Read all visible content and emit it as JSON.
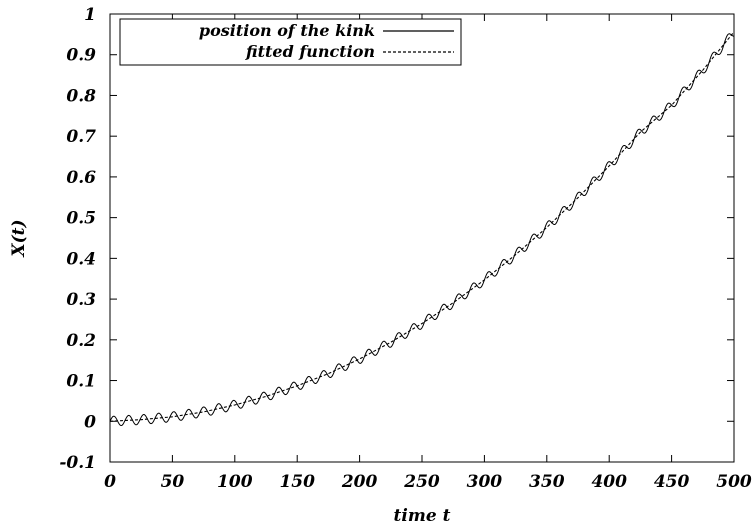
{
  "chart_data": {
    "type": "line",
    "title": "",
    "xlabel": "time t",
    "ylabel": "X(t)",
    "xlim": [
      0,
      500
    ],
    "ylim": [
      -0.1,
      1
    ],
    "x_ticks": [
      0,
      50,
      100,
      150,
      200,
      250,
      300,
      350,
      400,
      450,
      500
    ],
    "y_ticks": [
      -0.1,
      0,
      0.1,
      0.2,
      0.3,
      0.4,
      0.5,
      0.6,
      0.7,
      0.8,
      0.9,
      1
    ],
    "y_tick_labels": [
      "-0.1",
      "0",
      "0.1",
      "0.2",
      "0.3",
      "0.4",
      "0.5",
      "0.6",
      "0.7",
      "0.8",
      "0.9",
      "1"
    ],
    "x_tick_labels": [
      "0",
      "50",
      "100",
      "150",
      "200",
      "250",
      "300",
      "350",
      "400",
      "450",
      "500"
    ],
    "grid": false,
    "legend_position": "top-left",
    "series": [
      {
        "name": "position of the kink",
        "style": "solid",
        "color": "#000000",
        "x": [
          0,
          25,
          50,
          75,
          100,
          125,
          150,
          175,
          200,
          225,
          250,
          275,
          300,
          325,
          350,
          375,
          400,
          425,
          450,
          475,
          500
        ],
        "y": [
          0,
          0.004,
          0.011,
          0.023,
          0.04,
          0.061,
          0.087,
          0.117,
          0.153,
          0.194,
          0.24,
          0.291,
          0.347,
          0.409,
          0.476,
          0.549,
          0.627,
          0.71,
          0.776,
          0.862,
          0.956
        ],
        "oscillation_amplitude": 0.012,
        "oscillation_period": 12
      },
      {
        "name": "fitted function",
        "style": "dashed",
        "color": "#000000",
        "x": [
          0,
          25,
          50,
          75,
          100,
          125,
          150,
          175,
          200,
          225,
          250,
          275,
          300,
          325,
          350,
          375,
          400,
          425,
          450,
          475,
          500
        ],
        "y": [
          0,
          0.004,
          0.011,
          0.023,
          0.04,
          0.061,
          0.087,
          0.117,
          0.153,
          0.194,
          0.24,
          0.291,
          0.347,
          0.409,
          0.476,
          0.549,
          0.627,
          0.71,
          0.776,
          0.862,
          0.956
        ]
      }
    ]
  }
}
